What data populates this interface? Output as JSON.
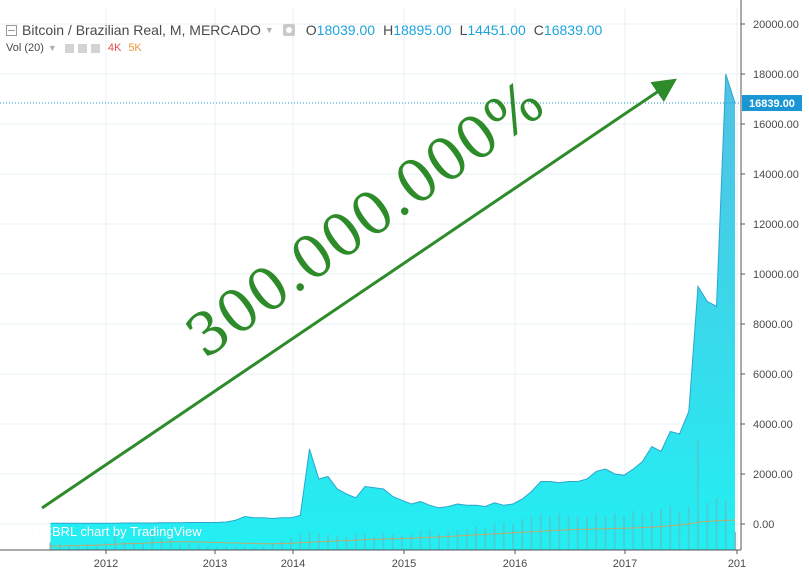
{
  "legend": {
    "symbol": "Bitcoin / Brazilian Real, M, MERCADO",
    "o_label": "O",
    "o_value": "18039.00",
    "h_label": "H",
    "h_value": "18895.00",
    "l_label": "L",
    "l_value": "14451.00",
    "c_label": "C",
    "c_value": "16839.00",
    "vol_label": "Vol (20)",
    "vol_4k": "4K",
    "vol_5k": "5K"
  },
  "watermark": "BTCBRL chart by TradingView",
  "colors": {
    "area_top": "#49bde2",
    "area_bottom": "#17eef2",
    "area_line": "#2aa7cf",
    "volume_bar": "#8fa0a8",
    "volume_ma": "#e69a4a",
    "annotation": "#2e8b2a",
    "price_tag": "#1b96d4",
    "axis_text": "#4a4a4a",
    "grid": "#e7f0f6"
  },
  "chart_data": {
    "type": "area",
    "title": "Bitcoin / Brazilian Real, M, MERCADO",
    "xlabel": "",
    "ylabel": "",
    "ylim": [
      -1000,
      20500
    ],
    "y_ticks": [
      "20000.00",
      "18000.00",
      "16000.00",
      "14000.00",
      "12000.00",
      "10000.00",
      "8000.00",
      "6000.00",
      "4000.00",
      "2000.00",
      "0.00"
    ],
    "x_ticks": [
      "2012",
      "2013",
      "2014",
      "2015",
      "2016",
      "2017",
      "201"
    ],
    "last_price": "16839.00",
    "annotation": "300.000.000%",
    "grid": true,
    "series": [
      {
        "x": [
          "2011-07",
          "2011-08",
          "2011-09",
          "2011-10",
          "2011-11",
          "2011-12",
          "2012-01",
          "2012-02",
          "2012-03",
          "2012-04",
          "2012-05",
          "2012-06",
          "2012-07",
          "2012-08",
          "2012-09",
          "2012-10",
          "2012-11",
          "2012-12",
          "2013-01",
          "2013-02",
          "2013-03",
          "2013-04",
          "2013-05",
          "2013-06",
          "2013-07",
          "2013-08",
          "2013-09",
          "2013-10",
          "2013-11",
          "2013-12",
          "2014-01",
          "2014-02",
          "2014-03",
          "2014-04",
          "2014-05",
          "2014-06",
          "2014-07",
          "2014-08",
          "2014-09",
          "2014-10",
          "2014-11",
          "2014-12",
          "2015-01",
          "2015-02",
          "2015-03",
          "2015-04",
          "2015-05",
          "2015-06",
          "2015-07",
          "2015-08",
          "2015-09",
          "2015-10",
          "2015-11",
          "2015-12",
          "2016-01",
          "2016-02",
          "2016-03",
          "2016-04",
          "2016-05",
          "2016-06",
          "2016-07",
          "2016-08",
          "2016-09",
          "2016-10",
          "2016-11",
          "2016-12",
          "2017-01",
          "2017-02",
          "2017-03",
          "2017-04",
          "2017-05",
          "2017-06",
          "2017-07",
          "2017-08",
          "2017-09"
        ],
        "values": [
          30,
          30,
          30,
          30,
          30,
          30,
          30,
          30,
          40,
          40,
          40,
          40,
          50,
          50,
          50,
          60,
          60,
          60,
          60,
          80,
          150,
          300,
          250,
          250,
          220,
          250,
          250,
          350,
          3000,
          1800,
          1900,
          1400,
          1200,
          1050,
          1500,
          1450,
          1400,
          1100,
          950,
          800,
          900,
          750,
          650,
          700,
          800,
          750,
          750,
          700,
          850,
          750,
          800,
          1000,
          1300,
          1700,
          1700,
          1650,
          1700,
          1700,
          1800,
          2100,
          2200,
          2000,
          1950,
          2200,
          2500,
          3100,
          2900,
          3700,
          3600,
          4500,
          9500,
          8900,
          8700,
          18000,
          16839
        ]
      }
    ],
    "volume": {
      "x_start": "2011-07",
      "values": [
        300,
        250,
        200,
        180,
        250,
        200,
        300,
        650,
        300,
        300,
        250,
        800,
        450,
        700,
        200,
        250,
        200,
        150,
        120,
        150,
        150,
        120,
        100,
        120,
        250,
        350,
        450,
        600,
        700,
        650,
        600,
        550,
        500,
        650,
        600,
        500,
        650,
        600,
        550,
        600,
        750,
        800,
        650,
        700,
        750,
        800,
        900,
        850,
        1000,
        1050,
        1000,
        1200,
        1300,
        1400,
        1300,
        1400,
        1350,
        1300,
        1250,
        1400,
        1300,
        1400,
        1300,
        1500,
        1400,
        1500,
        1600,
        1700,
        1500,
        1650,
        4200,
        1800,
        2000,
        1900,
        700
      ],
      "ma": [
        150,
        150,
        160,
        170,
        180,
        190,
        200,
        220,
        240,
        250,
        260,
        280,
        300,
        310,
        320,
        320,
        310,
        300,
        290,
        280,
        270,
        260,
        250,
        240,
        240,
        250,
        260,
        280,
        300,
        320,
        340,
        350,
        360,
        380,
        400,
        410,
        420,
        430,
        440,
        450,
        470,
        490,
        500,
        520,
        540,
        560,
        580,
        600,
        620,
        640,
        660,
        680,
        700,
        720,
        740,
        760,
        780,
        790,
        800,
        810,
        820,
        830,
        840,
        850,
        860,
        880,
        900,
        930,
        960,
        1000,
        1060,
        1100,
        1120,
        1140,
        1150
      ]
    }
  }
}
